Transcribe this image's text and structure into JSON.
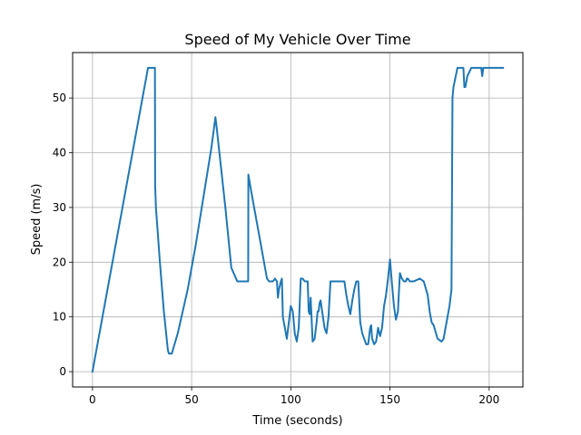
{
  "chart_data": {
    "type": "line",
    "title": "Speed of My Vehicle Over Time",
    "xlabel": "Time (seconds)",
    "ylabel": "Speed (m/s)",
    "xlim": [
      -10,
      217
    ],
    "ylim": [
      -2.8,
      58.3
    ],
    "xticks": [
      0,
      50,
      100,
      150,
      200
    ],
    "yticks": [
      0,
      10,
      20,
      30,
      40,
      50
    ],
    "grid": true,
    "line_color": "#1f77b4",
    "series": [
      {
        "x": [
          0,
          28,
          28.5,
          31.5,
          31.6,
          32,
          34,
          36,
          38,
          38.5,
          40,
          43,
          48,
          52,
          56,
          60,
          62,
          62.5,
          64,
          67,
          70,
          73,
          74.5,
          75,
          78.5,
          78.6,
          80,
          82,
          84,
          86,
          87.5,
          88,
          89,
          90,
          91,
          92,
          93,
          93.5,
          94,
          95,
          95.5,
          96,
          97,
          98,
          100,
          101,
          102,
          103,
          104,
          105,
          106,
          107,
          107.5,
          108,
          108.5,
          109,
          109.5,
          110,
          111,
          112,
          113,
          113.5,
          114,
          114.5,
          115,
          117,
          118,
          119,
          120,
          121,
          122,
          122.5,
          124,
          127,
          128,
          129,
          130,
          131,
          132,
          133,
          134,
          135,
          136,
          136.5,
          137,
          138,
          139,
          140,
          140.5,
          141,
          142,
          143,
          144,
          145,
          146,
          147,
          148,
          149,
          150,
          151,
          152,
          153,
          154,
          155,
          156,
          157,
          158,
          158.5,
          159,
          160,
          162,
          165,
          167,
          169,
          170,
          171,
          172,
          174,
          176,
          177,
          178,
          179,
          180,
          181,
          181.5,
          182,
          184,
          186,
          187,
          187.5,
          188,
          189,
          191,
          195,
          196,
          196.5,
          197,
          200,
          207
        ],
        "y": [
          0,
          55.5,
          55.5,
          55.5,
          34,
          30,
          20,
          11,
          4,
          3.3,
          3.3,
          7,
          15,
          23,
          32,
          41,
          46.5,
          45,
          40,
          30,
          19,
          16.5,
          16.5,
          16.5,
          16.5,
          36,
          33,
          29,
          25,
          21,
          18,
          17,
          16.5,
          16.5,
          16.5,
          17,
          16.5,
          13.5,
          15,
          16.5,
          17,
          10,
          8,
          6,
          12,
          11,
          7,
          5.5,
          8,
          17,
          17,
          16.5,
          16.5,
          16.5,
          16.5,
          11,
          10.5,
          13.5,
          5.5,
          6,
          9,
          11,
          11,
          12.5,
          13,
          8,
          7,
          10,
          16.5,
          16.5,
          16.5,
          16.5,
          16.5,
          16.5,
          14,
          12,
          10.5,
          13,
          15,
          16.5,
          16.5,
          9,
          7,
          6.5,
          6,
          5,
          5,
          8,
          8.5,
          6,
          5,
          5.5,
          8,
          6.5,
          8,
          12,
          14,
          17,
          20.5,
          16,
          12,
          9.5,
          11,
          18,
          17,
          16.5,
          16.5,
          17,
          17,
          16.5,
          16.5,
          17,
          16.5,
          14,
          11,
          9,
          8.5,
          6,
          5.5,
          6,
          8,
          10,
          12,
          15,
          50,
          52,
          55.5,
          55.5,
          55.5,
          52,
          52,
          54,
          55.5,
          55.5,
          55.5,
          54,
          55.5,
          55.5,
          55.5
        ]
      }
    ]
  }
}
